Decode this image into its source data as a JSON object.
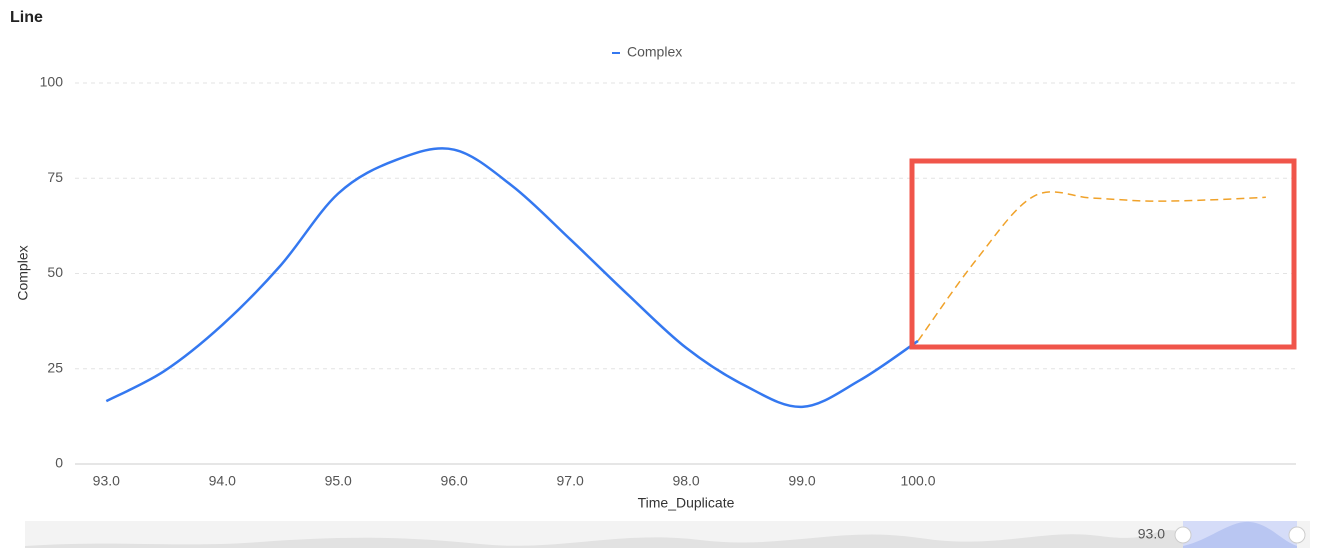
{
  "chart_data": {
    "type": "line",
    "title": "Line",
    "xlabel": "Time_Duplicate",
    "ylabel": "Complex",
    "xlim": [
      92.73,
      103.26
    ],
    "ylim": [
      0,
      100
    ],
    "xticks": [
      {
        "value": 93,
        "label": "93.0"
      },
      {
        "value": 94,
        "label": "94.0"
      },
      {
        "value": 95,
        "label": "95.0"
      },
      {
        "value": 96,
        "label": "96.0"
      },
      {
        "value": 97,
        "label": "97.0"
      },
      {
        "value": 98,
        "label": "98.0"
      },
      {
        "value": 99,
        "label": "99.0"
      },
      {
        "value": 100,
        "label": "100.0"
      }
    ],
    "yticks": [
      0,
      25,
      50,
      75,
      100
    ],
    "grid": true,
    "legend": "top",
    "series": [
      {
        "name": "Complex",
        "color": "#3478f0",
        "line_style": "solid",
        "x": [
          93,
          93.5,
          94,
          94.5,
          95,
          95.5,
          96,
          96.5,
          97,
          97.5,
          98,
          98.5,
          99,
          99.5,
          100
        ],
        "values": [
          16.5,
          24.4,
          36.5,
          52,
          71,
          79.8,
          82.5,
          73,
          59,
          44.4,
          30.5,
          20.7,
          15,
          22,
          32.3
        ]
      },
      {
        "color": "#f0a22a",
        "line_style": "dashed",
        "x": [
          100,
          100.5,
          101,
          101.5,
          102,
          102.5,
          103
        ],
        "values": [
          32.3,
          53.5,
          70.3,
          69.8,
          69,
          69.3,
          70
        ]
      }
    ],
    "data_zoom": {
      "label": "93.0"
    }
  }
}
